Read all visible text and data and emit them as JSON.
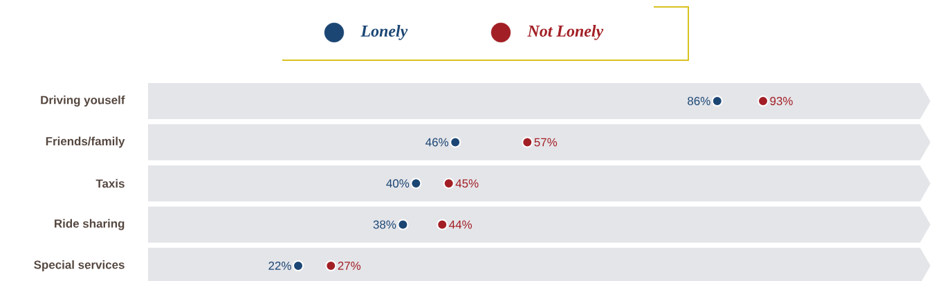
{
  "chart_data": {
    "type": "scatter",
    "orientation": "horizontal",
    "categories": [
      "Driving youself",
      "Friends/family",
      "Taxis",
      "Ride sharing",
      "Special services"
    ],
    "series": [
      {
        "name": "Lonely",
        "color": "#1b4674",
        "values": [
          86,
          46,
          40,
          38,
          22
        ],
        "value_labels": [
          "86%",
          "46%",
          "40%",
          "38%",
          "22%"
        ]
      },
      {
        "name": "Not Lonely",
        "color": "#a21f25",
        "values": [
          93,
          57,
          45,
          44,
          27
        ],
        "value_labels": [
          "93%",
          "57%",
          "45%",
          "44%",
          "27%"
        ]
      }
    ],
    "marker": "circle",
    "legend": "top"
  }
}
